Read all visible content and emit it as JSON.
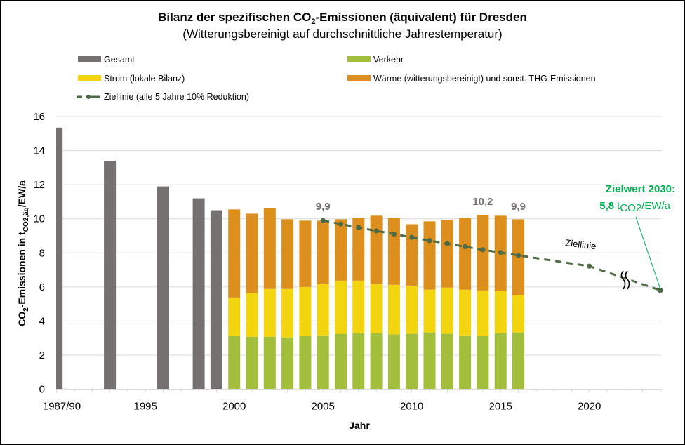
{
  "chart_data": {
    "type": "bar",
    "stacked": true,
    "title": "Bilanz der spezifischen CO₂-Emissionen  (äquivalent) für Dresden",
    "title_parts": {
      "before": "Bilanz der spezifischen CO",
      "sub": "2",
      "after": "-Emissionen  (äquivalent) für Dresden"
    },
    "subtitle": "(Witterungsbereinigt  auf durchschnittliche Jahrestemperatur)",
    "xlabel": "Jahr",
    "ylabel": "CO₂-Emissionen in t_CO2,äq/EW/a",
    "ylabel_parts": {
      "a": "CO",
      "a_sub": "2",
      "b": "-Emissionen in t",
      "b_sub": "CO2,äq",
      "c": "/EW/a"
    },
    "ylim": [
      0,
      16
    ],
    "yticks": [
      0,
      2,
      4,
      6,
      8,
      10,
      12,
      14,
      16
    ],
    "grid": true,
    "legend_position": "top",
    "colors": {
      "gesamt": "#767171",
      "verkehr": "#A3BE3A",
      "strom": "#F2D40F",
      "waerme": "#DC8F1C",
      "ziellinie": "#4E6A45",
      "grid": "#D9D9D9",
      "goal_text": "#00B050",
      "data_label": "#767171"
    },
    "legend": [
      {
        "key": "gesamt",
        "label": "Gesamt"
      },
      {
        "key": "verkehr",
        "label": "Verkehr"
      },
      {
        "key": "strom",
        "label": "Strom (lokale Bilanz)"
      },
      {
        "key": "waerme",
        "label": "Wärme (witterungsbereinigt) und sonst. THG-Emissionen"
      },
      {
        "key": "ziellinie",
        "label": "Ziellinie (alle 5 Jahre 10% Reduktion)"
      }
    ],
    "categories": [
      "1987/90",
      "1991",
      "1992",
      "1993",
      "1994",
      "1995",
      "1996",
      "1997",
      "1998",
      "1999",
      "2000",
      "2001",
      "2002",
      "2003",
      "2004",
      "2005",
      "2006",
      "2007",
      "2008",
      "2009",
      "2010",
      "2011",
      "2012",
      "2013",
      "2014",
      "2015",
      "2016",
      "2017",
      "2018",
      "2019",
      "2020",
      "2021",
      "2022",
      "2023",
      "2030"
    ],
    "xtick_labels": [
      {
        "index": 0,
        "label": "1987/90"
      },
      {
        "index": 5,
        "label": "1995"
      },
      {
        "index": 10,
        "label": "2000"
      },
      {
        "index": 15,
        "label": "2005"
      },
      {
        "index": 20,
        "label": "2010"
      },
      {
        "index": 25,
        "label": "2015"
      },
      {
        "index": 30,
        "label": "2020"
      }
    ],
    "gesamt": [
      {
        "index": 0,
        "year": "1987/90",
        "value": 15.35
      },
      {
        "index": 3,
        "year": "1993",
        "value": 13.4
      },
      {
        "index": 6,
        "year": "1996",
        "value": 11.9
      },
      {
        "index": 8,
        "year": "1998",
        "value": 11.2
      },
      {
        "index": 9,
        "year": "1999",
        "value": 10.5
      }
    ],
    "stacked_start_index": 10,
    "series": [
      {
        "name": "Verkehr",
        "key": "verkehr",
        "values": [
          3.12,
          3.08,
          3.08,
          3.04,
          3.12,
          3.16,
          3.25,
          3.29,
          3.29,
          3.21,
          3.25,
          3.33,
          3.25,
          3.16,
          3.12,
          3.29,
          3.33
        ]
      },
      {
        "name": "Strom (lokale Bilanz)",
        "key": "strom",
        "values": [
          2.26,
          2.56,
          2.8,
          2.84,
          2.88,
          3.0,
          3.12,
          3.08,
          2.91,
          2.91,
          2.83,
          2.51,
          2.71,
          2.68,
          2.67,
          2.46,
          2.18
        ]
      },
      {
        "name": "Wärme (witterungsbereinigt) und sonst. THG-Emissionen",
        "key": "waerme",
        "values": [
          5.17,
          4.66,
          4.75,
          4.09,
          3.89,
          3.73,
          3.6,
          3.68,
          3.98,
          3.93,
          3.6,
          4.01,
          3.97,
          4.21,
          4.43,
          4.43,
          4.46
        ]
      }
    ],
    "stacked_years": [
      "2000",
      "2001",
      "2002",
      "2003",
      "2004",
      "2005",
      "2006",
      "2007",
      "2008",
      "2009",
      "2010",
      "2011",
      "2012",
      "2013",
      "2014",
      "2015",
      "2016"
    ],
    "ziellinie": [
      {
        "index": 15,
        "year": "2005",
        "value": 9.9
      },
      {
        "index": 16,
        "year": "2006",
        "value": 9.69
      },
      {
        "index": 17,
        "year": "2007",
        "value": 9.49
      },
      {
        "index": 18,
        "year": "2008",
        "value": 9.29
      },
      {
        "index": 19,
        "year": "2009",
        "value": 9.1
      },
      {
        "index": 20,
        "year": "2010",
        "value": 8.91
      },
      {
        "index": 21,
        "year": "2011",
        "value": 8.72
      },
      {
        "index": 22,
        "year": "2012",
        "value": 8.54
      },
      {
        "index": 23,
        "year": "2013",
        "value": 8.36
      },
      {
        "index": 24,
        "year": "2014",
        "value": 8.18
      },
      {
        "index": 25,
        "year": "2015",
        "value": 8.02
      },
      {
        "index": 26,
        "year": "2016",
        "value": 7.85
      },
      {
        "index": 30,
        "year": "2020",
        "value": 7.22
      },
      {
        "index": 34,
        "year": "2030",
        "value": 5.8
      }
    ],
    "data_labels": [
      {
        "index": 15,
        "value": 9.9,
        "text": "9,9"
      },
      {
        "index": 24,
        "value": 10.2,
        "text": "10,2"
      },
      {
        "index": 26,
        "value": 9.9,
        "text": "9,9"
      }
    ],
    "annotations": {
      "ziellinie_label": "Ziellinie",
      "axis_break_symbol": "≈",
      "goal_line1": "Zielwert 2030:",
      "goal_value": "5,8",
      "goal_unit_t": "t",
      "goal_unit_sub": "CO2",
      "goal_unit_rest": "/EW/a"
    }
  }
}
